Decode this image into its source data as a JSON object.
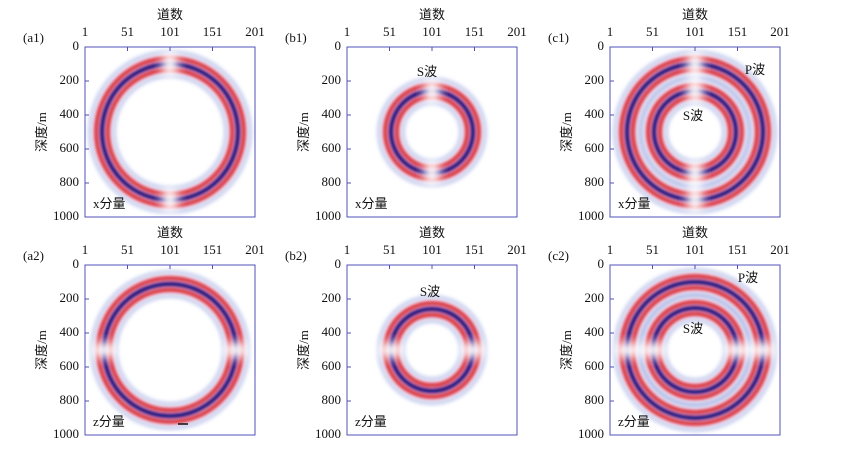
{
  "panels": [
    {
      "label": "(a1)",
      "x_title": "道数",
      "y_title": "深度/m",
      "xticks": [
        "1",
        "51",
        "101",
        "151",
        "201"
      ],
      "yticks": [
        "0",
        "200",
        "400",
        "600",
        "800",
        "1000"
      ],
      "component": "x分量",
      "annotations": []
    },
    {
      "label": "(b1)",
      "x_title": "道数",
      "y_title": "深度/m",
      "xticks": [
        "1",
        "51",
        "101",
        "151",
        "201"
      ],
      "yticks": [
        "0",
        "200",
        "400",
        "600",
        "800",
        "1000"
      ],
      "component": "x分量",
      "annotations": [
        "S波"
      ]
    },
    {
      "label": "(c1)",
      "x_title": "道数",
      "y_title": "深度/m",
      "xticks": [
        "1",
        "51",
        "101",
        "151",
        "201"
      ],
      "yticks": [
        "0",
        "200",
        "400",
        "600",
        "800",
        "1000"
      ],
      "component": "x分量",
      "annotations": [
        "P波",
        "S波"
      ]
    },
    {
      "label": "(a2)",
      "x_title": "道数",
      "y_title": "深度/m",
      "xticks": [
        "1",
        "51",
        "101",
        "151",
        "201"
      ],
      "yticks": [
        "0",
        "200",
        "400",
        "600",
        "800",
        "1000"
      ],
      "component": "z分量",
      "annotations": []
    },
    {
      "label": "(b2)",
      "x_title": "道数",
      "y_title": "深度/m",
      "xticks": [
        "1",
        "51",
        "101",
        "151",
        "201"
      ],
      "yticks": [
        "0",
        "200",
        "400",
        "600",
        "800",
        "1000"
      ],
      "component": "z分量",
      "annotations": [
        "S波"
      ]
    },
    {
      "label": "(c2)",
      "x_title": "道数",
      "y_title": "深度/m",
      "xticks": [
        "1",
        "51",
        "101",
        "151",
        "201"
      ],
      "yticks": [
        "0",
        "200",
        "400",
        "600",
        "800",
        "1000"
      ],
      "component": "z分量",
      "annotations": [
        "P波",
        "S波"
      ]
    }
  ]
}
